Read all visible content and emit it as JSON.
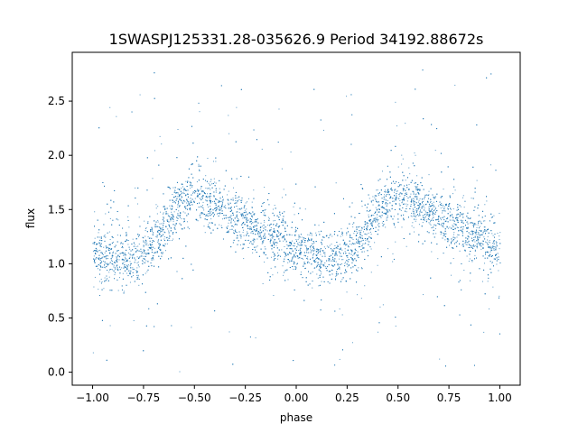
{
  "chart_data": {
    "type": "scatter",
    "title": "1SWASPJ125331.28-035626.9 Period 34192.88672s",
    "xlabel": "phase",
    "ylabel": "flux",
    "xlim": [
      -1.1,
      1.1
    ],
    "ylim": [
      -0.12,
      2.95
    ],
    "grid": false,
    "legend": "none",
    "marker_color": "#1f77b4",
    "x_ticks": [
      -1.0,
      -0.75,
      -0.5,
      -0.25,
      0.0,
      0.25,
      0.5,
      0.75,
      1.0
    ],
    "x_tick_labels": [
      "−1.00",
      "−0.75",
      "−0.50",
      "−0.25",
      "0.00",
      "0.25",
      "0.50",
      "0.75",
      "1.00"
    ],
    "y_ticks": [
      0.0,
      0.5,
      1.0,
      1.5,
      2.0,
      2.5
    ],
    "y_tick_labels": [
      "0.0",
      "0.5",
      "1.0",
      "1.5",
      "2.0",
      "2.5"
    ],
    "phase_profile": {
      "x": [
        -1.0,
        -0.9,
        -0.8,
        -0.7,
        -0.6,
        -0.5,
        -0.4,
        -0.3,
        -0.2,
        -0.1,
        0.0,
        0.1,
        0.2,
        0.3,
        0.4,
        0.5,
        0.6,
        0.7,
        0.8,
        0.9,
        1.0
      ],
      "y": [
        1.1,
        1.06,
        1.05,
        1.2,
        1.5,
        1.63,
        1.55,
        1.43,
        1.33,
        1.23,
        1.13,
        1.06,
        1.05,
        1.2,
        1.5,
        1.63,
        1.55,
        1.43,
        1.33,
        1.23,
        1.13
      ]
    }
  }
}
